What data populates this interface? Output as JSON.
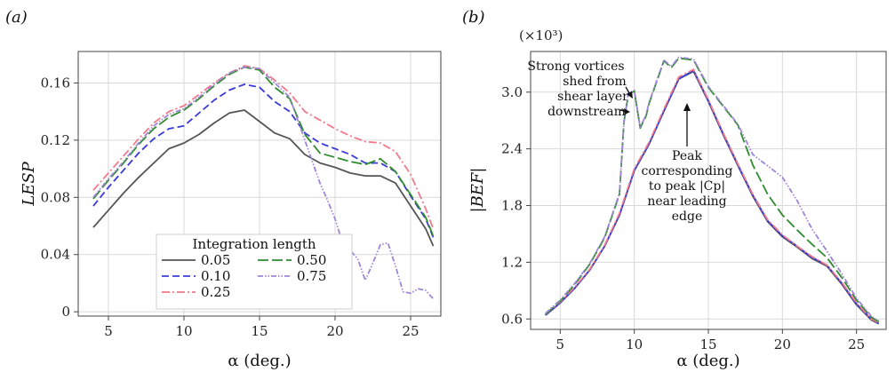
{
  "chart_data": [
    {
      "type": "line",
      "panel_label": "(a)",
      "xlabel": "α (deg.)",
      "ylabel": "LESP",
      "xlim": [
        3,
        27
      ],
      "ylim": [
        -0.003,
        0.182
      ],
      "xticks": [
        5,
        10,
        15,
        20,
        25
      ],
      "yticks": [
        0,
        0.04,
        0.08,
        0.12,
        0.16
      ],
      "ytick_labels": [
        "0",
        "0.04",
        "0.08",
        "0.12",
        "0.16"
      ],
      "grid": true,
      "legend": {
        "title": "Integration length",
        "placement": "lower-center",
        "entries": [
          "0.05",
          "0.50",
          "0.10",
          "0.75",
          "0.25"
        ]
      },
      "series": [
        {
          "name": "0.05",
          "color": "#555555",
          "dash": "solid",
          "x": [
            4,
            5,
            6,
            7,
            8,
            9,
            10,
            11,
            12,
            13,
            14,
            15,
            16,
            17,
            18,
            19,
            20,
            21,
            22,
            23,
            24,
            25,
            26,
            26.5
          ],
          "y": [
            0.059,
            0.071,
            0.083,
            0.094,
            0.104,
            0.114,
            0.118,
            0.124,
            0.132,
            0.139,
            0.141,
            0.133,
            0.125,
            0.121,
            0.11,
            0.104,
            0.101,
            0.097,
            0.095,
            0.095,
            0.09,
            0.074,
            0.058,
            0.046
          ]
        },
        {
          "name": "0.10",
          "color": "#3b3bd6",
          "dash": "dash",
          "x": [
            4,
            5,
            6,
            7,
            8,
            9,
            10,
            11,
            12,
            13,
            14,
            15,
            16,
            17,
            18,
            19,
            20,
            21,
            22,
            23,
            24,
            25,
            26,
            26.5
          ],
          "y": [
            0.074,
            0.087,
            0.099,
            0.111,
            0.121,
            0.128,
            0.13,
            0.139,
            0.148,
            0.155,
            0.159,
            0.157,
            0.147,
            0.14,
            0.125,
            0.118,
            0.114,
            0.11,
            0.104,
            0.104,
            0.098,
            0.081,
            0.065,
            0.052
          ]
        },
        {
          "name": "0.25",
          "color": "#f07a8c",
          "dash": "dashdot",
          "x": [
            4,
            5,
            6,
            7,
            8,
            9,
            10,
            11,
            12,
            13,
            14,
            15,
            16,
            17,
            18,
            19,
            20,
            21,
            22,
            23,
            24,
            25,
            26,
            26.5
          ],
          "y": [
            0.085,
            0.097,
            0.109,
            0.121,
            0.132,
            0.14,
            0.144,
            0.152,
            0.16,
            0.167,
            0.172,
            0.17,
            0.162,
            0.153,
            0.14,
            0.134,
            0.128,
            0.123,
            0.119,
            0.118,
            0.112,
            0.096,
            0.072,
            0.058
          ]
        },
        {
          "name": "0.50",
          "color": "#2e8b2e",
          "dash": "longdash",
          "x": [
            4,
            5,
            6,
            7,
            8,
            9,
            10,
            11,
            12,
            13,
            14,
            15,
            16,
            17,
            18,
            19,
            20,
            21,
            22,
            23,
            24,
            25,
            26,
            26.5
          ],
          "y": [
            0.079,
            0.092,
            0.104,
            0.117,
            0.128,
            0.136,
            0.141,
            0.149,
            0.158,
            0.166,
            0.171,
            0.169,
            0.157,
            0.149,
            0.124,
            0.111,
            0.108,
            0.105,
            0.103,
            0.107,
            0.098,
            0.082,
            0.066,
            0.053
          ]
        },
        {
          "name": "0.75",
          "color": "#9d86d6",
          "dash": "dashdotdot",
          "x": [
            4,
            5,
            6,
            7,
            8,
            9,
            10,
            11,
            12,
            13,
            14,
            15,
            16,
            17,
            18,
            19,
            19.5,
            20,
            20.5,
            21,
            21.5,
            22,
            22.5,
            23,
            23.5,
            24,
            24.5,
            25,
            25.5,
            26,
            26.5
          ],
          "y": [
            0.08,
            0.093,
            0.105,
            0.118,
            0.13,
            0.138,
            0.142,
            0.15,
            0.159,
            0.167,
            0.171,
            0.17,
            0.16,
            0.15,
            0.12,
            0.09,
            0.078,
            0.065,
            0.048,
            0.043,
            0.037,
            0.022,
            0.034,
            0.047,
            0.048,
            0.032,
            0.014,
            0.013,
            0.016,
            0.015,
            0.009
          ]
        }
      ]
    },
    {
      "type": "line",
      "panel_label": "(b)",
      "xlabel": "α (deg.)",
      "ylabel": "|BEF|",
      "axis_multiplier": "(×10³)",
      "xlim": [
        3,
        27
      ],
      "ylim": [
        0.49,
        3.43
      ],
      "xticks": [
        5,
        10,
        15,
        20,
        25
      ],
      "yticks": [
        0.6,
        1.2,
        1.8,
        2.4,
        3.0
      ],
      "ytick_labels": [
        "0.6",
        "1.2",
        "1.8",
        "2.4",
        "3.0"
      ],
      "grid": true,
      "annotations": [
        {
          "lines": [
            "Strong vortices",
            "shed from",
            "shear layer",
            "downstream"
          ]
        },
        {
          "lines": [
            "Peak",
            "corresponding",
            "to peak |Cp|",
            "near leading",
            "edge"
          ]
        }
      ],
      "series": [
        {
          "name": "0.05",
          "color": "#555555",
          "dash": "solid",
          "x": [
            4,
            5,
            6,
            7,
            8,
            9,
            10,
            11,
            12,
            13,
            14,
            15,
            16,
            17,
            18,
            19,
            20,
            21,
            22,
            23,
            24,
            25,
            26,
            26.5
          ],
          "y": [
            0.64,
            0.77,
            0.93,
            1.12,
            1.37,
            1.7,
            2.17,
            2.45,
            2.8,
            3.14,
            3.22,
            2.9,
            2.55,
            2.22,
            1.9,
            1.63,
            1.47,
            1.36,
            1.24,
            1.16,
            0.97,
            0.75,
            0.59,
            0.55
          ]
        },
        {
          "name": "0.10",
          "color": "#3b3bd6",
          "dash": "solid",
          "x": [
            4,
            5,
            6,
            7,
            8,
            9,
            10,
            11,
            12,
            13,
            14,
            15,
            16,
            17,
            18,
            19,
            20,
            21,
            22,
            23,
            24,
            25,
            26,
            26.5
          ],
          "y": [
            0.64,
            0.77,
            0.93,
            1.12,
            1.37,
            1.7,
            2.17,
            2.45,
            2.8,
            3.14,
            3.23,
            2.91,
            2.56,
            2.23,
            1.91,
            1.64,
            1.48,
            1.37,
            1.25,
            1.17,
            0.98,
            0.76,
            0.6,
            0.55
          ]
        },
        {
          "name": "0.25",
          "color": "#f07a8c",
          "dash": "dashdot",
          "x": [
            4,
            5,
            6,
            7,
            8,
            9,
            10,
            11,
            12,
            13,
            14,
            15,
            16,
            17,
            18,
            19,
            20,
            21,
            22,
            23,
            24,
            25,
            26,
            26.5
          ],
          "y": [
            0.65,
            0.78,
            0.94,
            1.13,
            1.38,
            1.72,
            2.19,
            2.47,
            2.82,
            3.16,
            3.24,
            2.92,
            2.57,
            2.24,
            1.92,
            1.65,
            1.49,
            1.37,
            1.26,
            1.17,
            0.99,
            0.77,
            0.6,
            0.56
          ]
        },
        {
          "name": "0.50",
          "color": "#2e8b2e",
          "dash": "longdash",
          "x": [
            4,
            5,
            6,
            7,
            8,
            9,
            9.3,
            9.6,
            10,
            10.4,
            10.8,
            11,
            12,
            12.5,
            13,
            14,
            15,
            16,
            17,
            18,
            19,
            20,
            21,
            22,
            23,
            24,
            25,
            26,
            26.5
          ],
          "y": [
            0.65,
            0.79,
            0.97,
            1.18,
            1.46,
            1.92,
            2.68,
            2.98,
            3.01,
            2.62,
            2.75,
            2.88,
            3.33,
            3.26,
            3.36,
            3.34,
            3.05,
            2.85,
            2.65,
            2.23,
            1.92,
            1.7,
            1.54,
            1.39,
            1.25,
            1.04,
            0.8,
            0.62,
            0.57
          ]
        },
        {
          "name": "0.75",
          "color": "#9d86d6",
          "dash": "dashdotdot",
          "x": [
            4,
            5,
            6,
            7,
            8,
            9,
            9.3,
            9.6,
            10,
            10.4,
            10.8,
            11,
            12,
            12.5,
            13,
            14,
            15,
            16,
            17,
            18,
            19,
            20,
            21,
            22,
            23,
            24,
            25,
            26,
            26.5
          ],
          "y": [
            0.66,
            0.8,
            0.98,
            1.19,
            1.47,
            1.93,
            2.69,
            2.99,
            3.02,
            2.63,
            2.76,
            2.89,
            3.34,
            3.27,
            3.37,
            3.35,
            3.06,
            2.86,
            2.66,
            2.34,
            2.22,
            2.1,
            1.85,
            1.55,
            1.32,
            1.08,
            0.82,
            0.63,
            0.58
          ]
        }
      ]
    }
  ]
}
